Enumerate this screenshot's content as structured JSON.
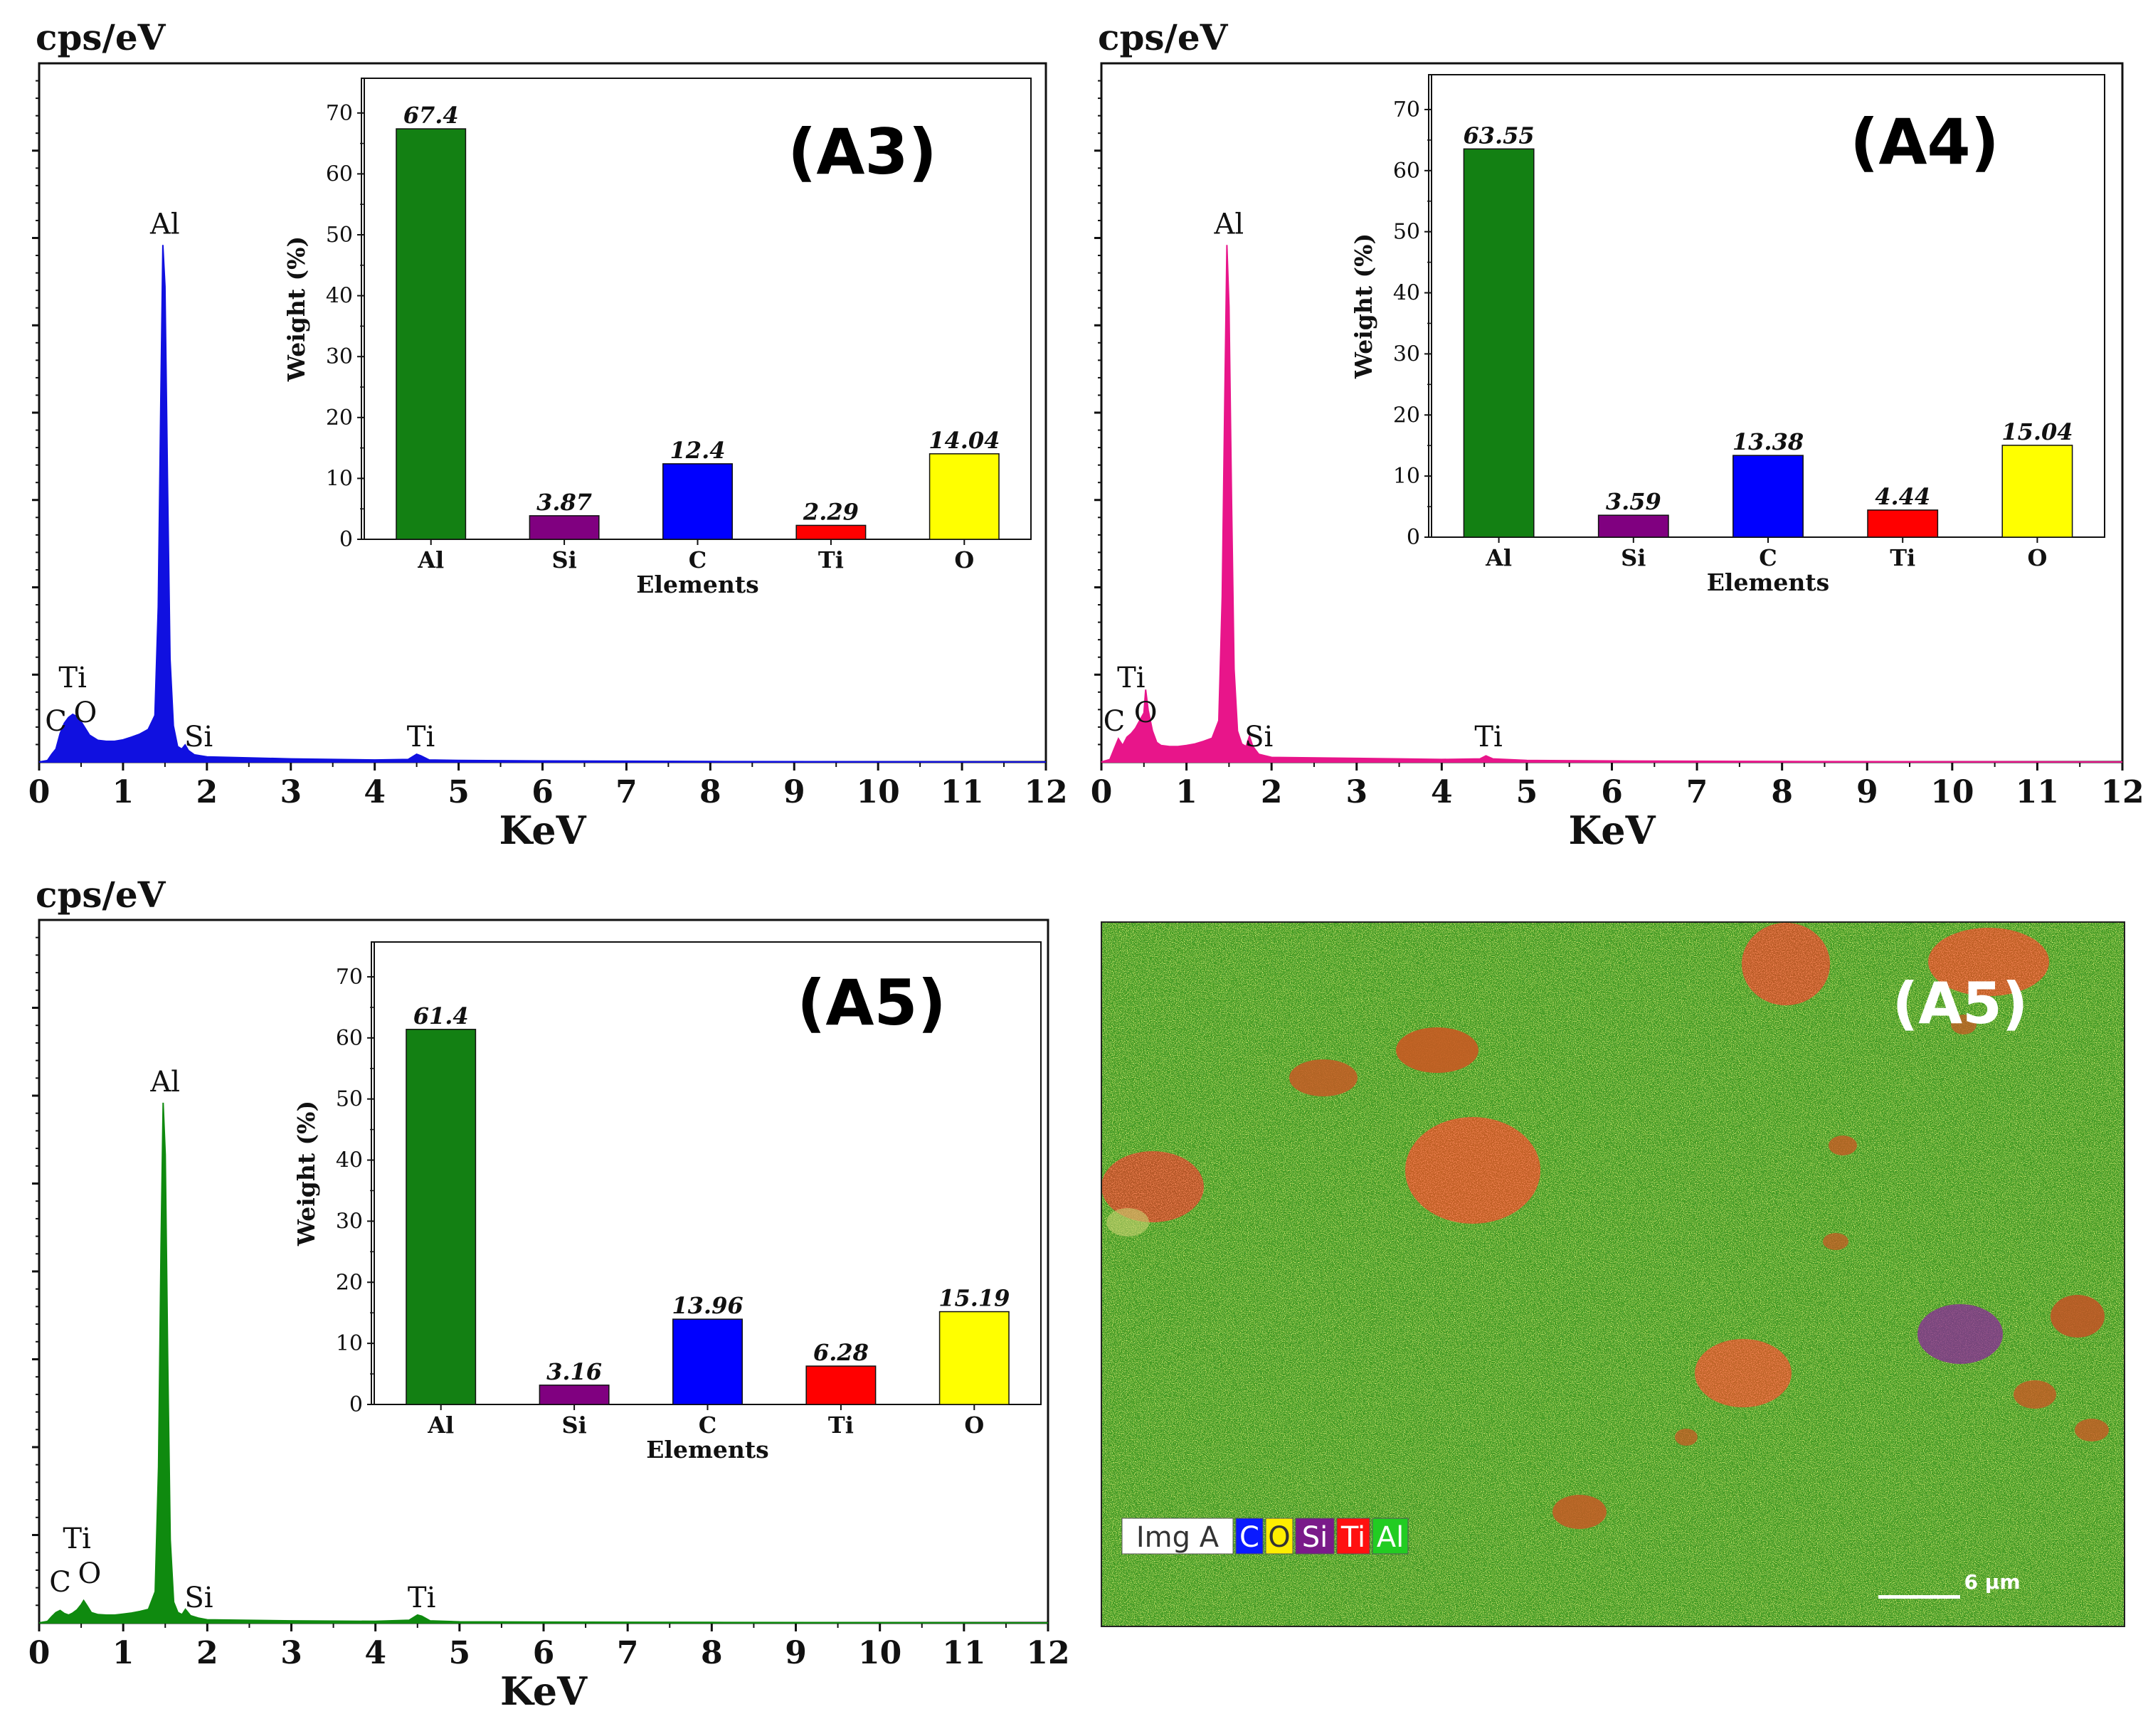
{
  "chart_data": [
    {
      "id": "A3",
      "type": "line",
      "panel_label": "(A3)",
      "ylabel": "cps/eV",
      "xlabel": "KeV",
      "xlim": [
        0,
        12
      ],
      "xticks": [
        "0",
        "1",
        "2",
        "3",
        "4",
        "5",
        "6",
        "7",
        "8",
        "9",
        "10",
        "11",
        "12"
      ],
      "color": "#1010e0",
      "spectrum": [
        [
          0,
          0
        ],
        [
          0.1,
          0.3
        ],
        [
          0.15,
          1.5
        ],
        [
          0.2,
          2.5
        ],
        [
          0.25,
          5.5
        ],
        [
          0.3,
          7.5
        ],
        [
          0.35,
          8.6
        ],
        [
          0.4,
          9.2
        ],
        [
          0.45,
          8.8
        ],
        [
          0.5,
          7.8
        ],
        [
          0.55,
          6.5
        ],
        [
          0.6,
          5.2
        ],
        [
          0.7,
          4.2
        ],
        [
          0.8,
          4.0
        ],
        [
          0.9,
          4.0
        ],
        [
          1.0,
          4.3
        ],
        [
          1.1,
          4.8
        ],
        [
          1.2,
          5.4
        ],
        [
          1.3,
          6.3
        ],
        [
          1.38,
          9
        ],
        [
          1.42,
          30
        ],
        [
          1.45,
          70
        ],
        [
          1.475,
          100
        ],
        [
          1.5,
          92
        ],
        [
          1.53,
          55
        ],
        [
          1.56,
          20
        ],
        [
          1.6,
          7
        ],
        [
          1.65,
          3
        ],
        [
          1.7,
          2.5
        ],
        [
          1.74,
          3.3
        ],
        [
          1.78,
          2.2
        ],
        [
          1.85,
          1.4
        ],
        [
          2.0,
          1.0
        ],
        [
          3.0,
          0.6
        ],
        [
          4.0,
          0.4
        ],
        [
          4.4,
          0.5
        ],
        [
          4.5,
          1.5
        ],
        [
          4.55,
          1.2
        ],
        [
          4.65,
          0.4
        ],
        [
          5.0,
          0.3
        ],
        [
          6.0,
          0.2
        ],
        [
          8.0,
          0.1
        ],
        [
          10.0,
          0.05
        ],
        [
          12.0,
          0
        ]
      ],
      "peak_labels": [
        {
          "text": "Al",
          "x": 1.5
        },
        {
          "text": "Ti",
          "x": 0.4
        },
        {
          "text": "O",
          "x": 0.55
        },
        {
          "text": "C",
          "x": 0.2
        },
        {
          "text": "Si",
          "x": 1.9
        },
        {
          "text": "Ti",
          "x": 4.55
        }
      ],
      "inset": {
        "type": "bar",
        "xlabel": "Elements",
        "ylabel": "Weight (%)",
        "ylim": [
          0,
          75
        ],
        "yticks": [
          "0",
          "10",
          "20",
          "30",
          "40",
          "50",
          "60",
          "70"
        ],
        "categories": [
          "Al",
          "Si",
          "C",
          "Ti",
          "O"
        ],
        "values": [
          67.4,
          3.87,
          12.4,
          2.29,
          14.04
        ],
        "value_labels": [
          "67.4",
          "3.87",
          "12.4",
          "2.29",
          "14.04"
        ],
        "colors": [
          "#138013",
          "#800080",
          "#0000ff",
          "#ff0000",
          "#ffff00"
        ]
      }
    },
    {
      "id": "A4",
      "type": "line",
      "panel_label": "(A4)",
      "ylabel": "cps/eV",
      "xlabel": "KeV",
      "xlim": [
        0,
        12
      ],
      "xticks": [
        "0",
        "1",
        "2",
        "3",
        "4",
        "5",
        "6",
        "7",
        "8",
        "9",
        "10",
        "11",
        "12"
      ],
      "color": "#e8158a",
      "spectrum": [
        [
          0,
          0
        ],
        [
          0.1,
          0.5
        ],
        [
          0.15,
          2.5
        ],
        [
          0.2,
          4.5
        ],
        [
          0.25,
          3.2
        ],
        [
          0.3,
          4.8
        ],
        [
          0.35,
          5.5
        ],
        [
          0.4,
          6.5
        ],
        [
          0.45,
          8
        ],
        [
          0.5,
          9.5
        ],
        [
          0.52,
          14
        ],
        [
          0.55,
          10
        ],
        [
          0.6,
          6
        ],
        [
          0.65,
          3.8
        ],
        [
          0.7,
          3.2
        ],
        [
          0.8,
          3.0
        ],
        [
          0.9,
          3.0
        ],
        [
          1.0,
          3.2
        ],
        [
          1.1,
          3.5
        ],
        [
          1.2,
          4.0
        ],
        [
          1.3,
          4.6
        ],
        [
          1.38,
          8
        ],
        [
          1.42,
          32
        ],
        [
          1.45,
          70
        ],
        [
          1.475,
          100
        ],
        [
          1.5,
          88
        ],
        [
          1.53,
          50
        ],
        [
          1.56,
          18
        ],
        [
          1.6,
          6
        ],
        [
          1.65,
          3.5
        ],
        [
          1.7,
          3.0
        ],
        [
          1.74,
          5.0
        ],
        [
          1.78,
          3.0
        ],
        [
          1.85,
          1.5
        ],
        [
          2.0,
          0.9
        ],
        [
          3.0,
          0.7
        ],
        [
          4.0,
          0.5
        ],
        [
          4.45,
          0.6
        ],
        [
          4.52,
          1.2
        ],
        [
          4.6,
          0.6
        ],
        [
          5.0,
          0.3
        ],
        [
          6.0,
          0.2
        ],
        [
          8.0,
          0.1
        ],
        [
          10.0,
          0.05
        ],
        [
          12.0,
          0
        ]
      ],
      "peak_labels": [
        {
          "text": "Al",
          "x": 1.5
        },
        {
          "text": "Ti",
          "x": 0.35
        },
        {
          "text": "O",
          "x": 0.52
        },
        {
          "text": "C",
          "x": 0.15
        },
        {
          "text": "Si",
          "x": 1.85
        },
        {
          "text": "Ti",
          "x": 4.55
        }
      ],
      "inset": {
        "type": "bar",
        "xlabel": "Elements",
        "ylabel": "Weight (%)",
        "ylim": [
          0,
          75
        ],
        "yticks": [
          "0",
          "10",
          "20",
          "30",
          "40",
          "50",
          "60",
          "70"
        ],
        "categories": [
          "Al",
          "Si",
          "C",
          "Ti",
          "O"
        ],
        "values": [
          63.55,
          3.59,
          13.38,
          4.44,
          15.04
        ],
        "value_labels": [
          "63.55",
          "3.59",
          "13.38",
          "4.44",
          "15.04"
        ],
        "colors": [
          "#138013",
          "#800080",
          "#0000ff",
          "#ff0000",
          "#ffff00"
        ]
      }
    },
    {
      "id": "A5",
      "type": "line",
      "panel_label": "(A5)",
      "ylabel": "cps/eV",
      "xlabel": "KeV",
      "xlim": [
        0,
        12
      ],
      "xticks": [
        "0",
        "1",
        "2",
        "3",
        "4",
        "5",
        "6",
        "7",
        "8",
        "9",
        "10",
        "11",
        "12"
      ],
      "color": "#0f8a0f",
      "spectrum": [
        [
          0,
          0
        ],
        [
          0.1,
          0.3
        ],
        [
          0.15,
          1.2
        ],
        [
          0.2,
          2.0
        ],
        [
          0.25,
          2.4
        ],
        [
          0.3,
          1.8
        ],
        [
          0.35,
          1.5
        ],
        [
          0.4,
          1.9
        ],
        [
          0.45,
          2.5
        ],
        [
          0.5,
          3.5
        ],
        [
          0.53,
          4.3
        ],
        [
          0.57,
          3.3
        ],
        [
          0.62,
          2.0
        ],
        [
          0.7,
          1.6
        ],
        [
          0.8,
          1.5
        ],
        [
          0.9,
          1.5
        ],
        [
          1.0,
          1.7
        ],
        [
          1.1,
          1.9
        ],
        [
          1.2,
          2.2
        ],
        [
          1.3,
          2.6
        ],
        [
          1.38,
          6
        ],
        [
          1.42,
          30
        ],
        [
          1.45,
          72
        ],
        [
          1.475,
          100
        ],
        [
          1.5,
          90
        ],
        [
          1.53,
          50
        ],
        [
          1.56,
          16
        ],
        [
          1.6,
          4
        ],
        [
          1.65,
          2.0
        ],
        [
          1.7,
          1.6
        ],
        [
          1.74,
          2.6
        ],
        [
          1.8,
          1.4
        ],
        [
          1.9,
          0.9
        ],
        [
          2.0,
          0.6
        ],
        [
          3.0,
          0.4
        ],
        [
          4.0,
          0.3
        ],
        [
          4.4,
          0.5
        ],
        [
          4.5,
          1.5
        ],
        [
          4.55,
          1.3
        ],
        [
          4.65,
          0.4
        ],
        [
          5.0,
          0.2
        ],
        [
          6.0,
          0.15
        ],
        [
          8.0,
          0.1
        ],
        [
          10.0,
          0.05
        ],
        [
          12.0,
          0
        ]
      ],
      "peak_labels": [
        {
          "text": "Al",
          "x": 1.5
        },
        {
          "text": "Ti",
          "x": 0.45
        },
        {
          "text": "O",
          "x": 0.6
        },
        {
          "text": "C",
          "x": 0.25
        },
        {
          "text": "Si",
          "x": 1.9
        },
        {
          "text": "Ti",
          "x": 4.55
        }
      ],
      "inset": {
        "type": "bar",
        "xlabel": "Elements",
        "ylabel": "Weight (%)",
        "ylim": [
          0,
          75
        ],
        "yticks": [
          "0",
          "10",
          "20",
          "30",
          "40",
          "50",
          "60",
          "70"
        ],
        "categories": [
          "Al",
          "Si",
          "C",
          "Ti",
          "O"
        ],
        "values": [
          61.4,
          3.16,
          13.96,
          6.28,
          15.19
        ],
        "value_labels": [
          "61.4",
          "3.16",
          "13.96",
          "6.28",
          "15.19"
        ],
        "colors": [
          "#138013",
          "#800080",
          "#0000ff",
          "#ff0000",
          "#ffff00"
        ]
      }
    }
  ],
  "eds_map": {
    "panel_label": "(A5)",
    "legend": [
      {
        "label": "Img A",
        "bg": "#ffffff",
        "fg": "#333333"
      },
      {
        "label": "C",
        "bg": "#0a1aff",
        "fg": "#ffffff"
      },
      {
        "label": "O",
        "bg": "#ffee00",
        "fg": "#333333"
      },
      {
        "label": "Si",
        "bg": "#7a1a8a",
        "fg": "#ffffff"
      },
      {
        "label": "Ti",
        "bg": "#ff1010",
        "fg": "#ffffff"
      },
      {
        "label": "Al",
        "bg": "#22cc22",
        "fg": "#ffffff"
      }
    ],
    "scale_bar_label": "6 µm"
  }
}
